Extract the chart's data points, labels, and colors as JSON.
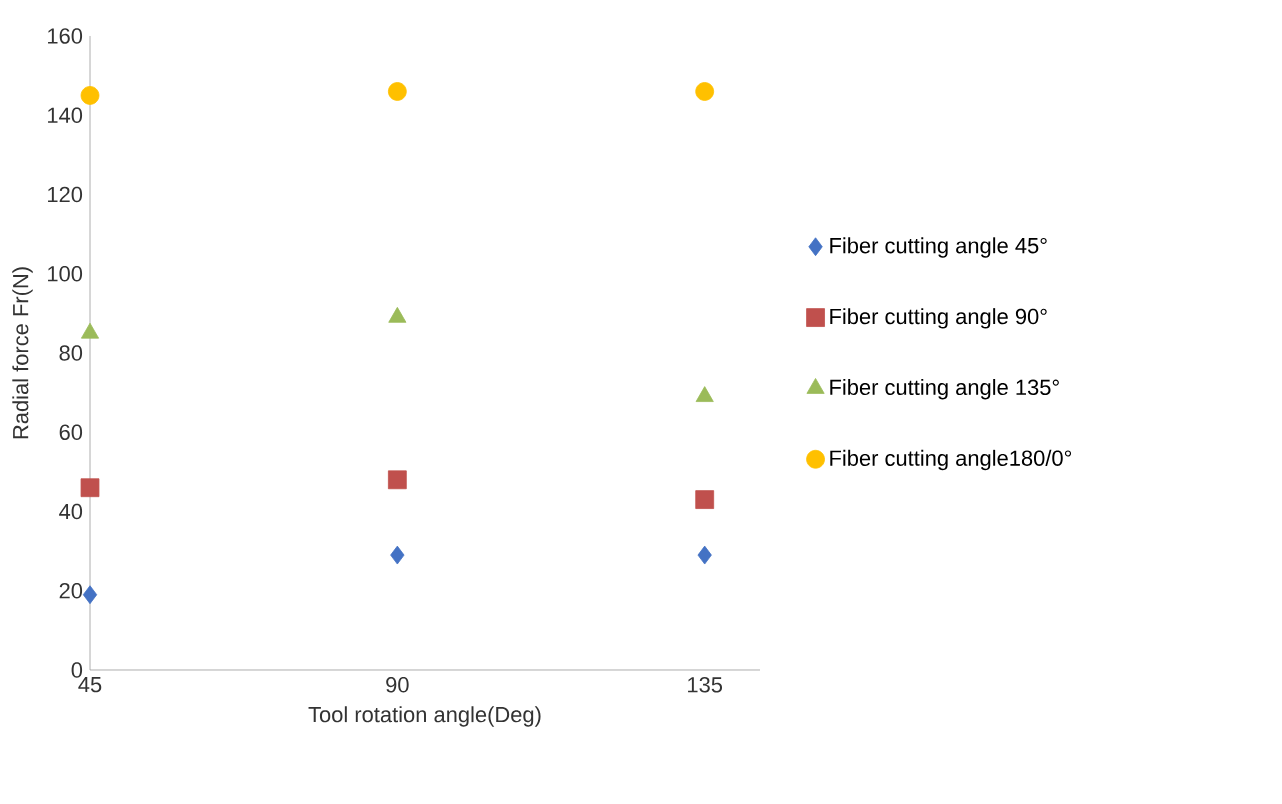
{
  "chart_data": {
    "type": "scatter",
    "xlabel": "Tool rotation angle(Deg)",
    "ylabel": "Radial force Fr(N)",
    "categories": [
      "45",
      "90",
      "135"
    ],
    "ylim": [
      0,
      160
    ],
    "yticks": [
      0,
      20,
      40,
      60,
      80,
      100,
      120,
      140,
      160
    ],
    "grid": false,
    "legend": "right",
    "series": [
      {
        "name": "Fiber cutting angle 45°",
        "color": "#4472c4",
        "marker": "diamond",
        "values": [
          19,
          29,
          29
        ]
      },
      {
        "name": "Fiber cutting angle 90°",
        "color": "#c0504d",
        "marker": "square",
        "values": [
          46,
          48,
          43
        ]
      },
      {
        "name": "Fiber cutting angle 135°",
        "color": "#9bbb59",
        "marker": "triangle",
        "values": [
          85,
          89,
          69
        ]
      },
      {
        "name": "Fiber cutting angle180/0°",
        "color": "#ffc000",
        "marker": "circle",
        "values": [
          145,
          146,
          146
        ]
      }
    ]
  }
}
